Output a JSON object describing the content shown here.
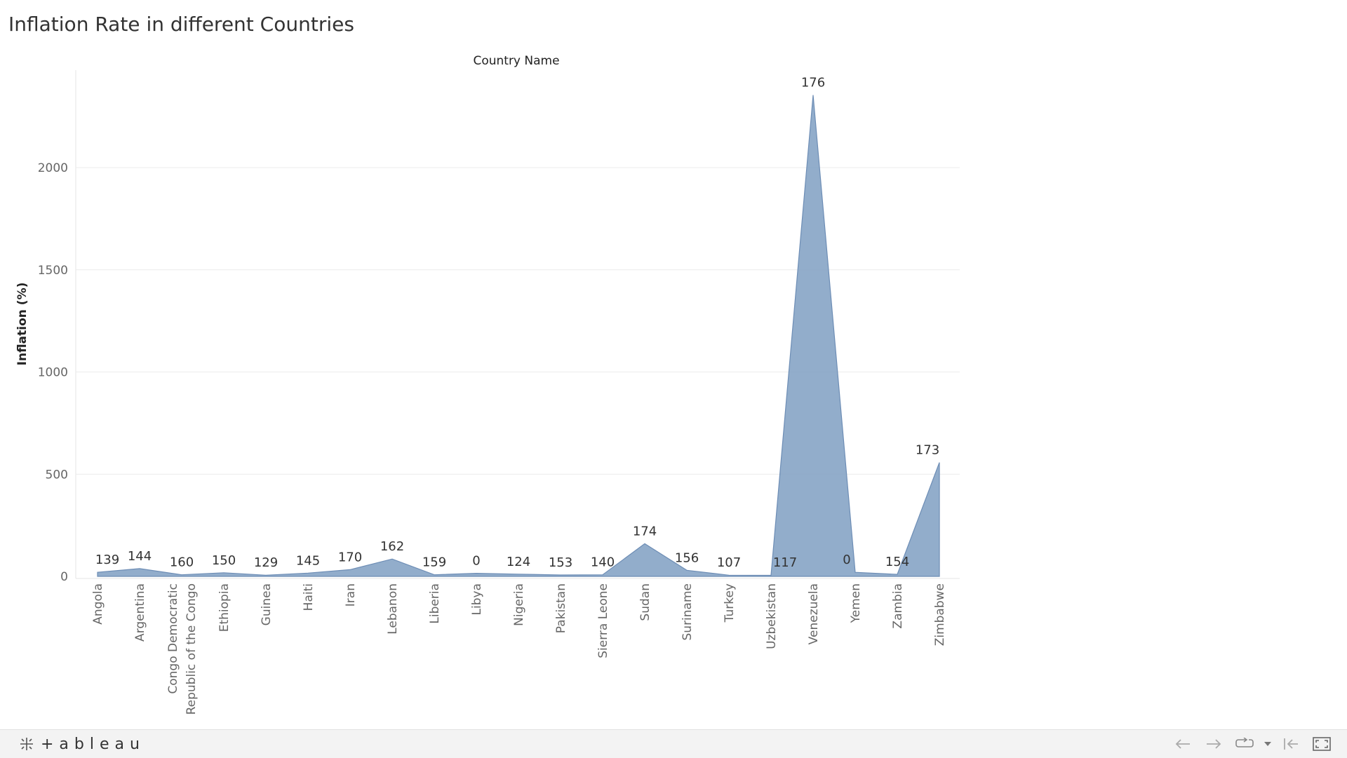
{
  "title": "Inflation Rate in different Countries",
  "footer": {
    "brand": "+ableau",
    "controls": [
      "undo-icon",
      "redo-icon",
      "revert-icon",
      "dropdown-icon",
      "reset-icon",
      "fullscreen-icon"
    ]
  },
  "chart_data": {
    "type": "area",
    "header": "Country Name",
    "ylabel": "Inflation (%)",
    "ylim": [
      0,
      2360
    ],
    "yticks": [
      "0",
      "500",
      "1000",
      "1500",
      "2000"
    ],
    "grid": true,
    "color": "#7f9fc2",
    "categories": [
      [
        "Angola"
      ],
      [
        "Argentina"
      ],
      [
        "Congo Democratic",
        "Republic of the Congo"
      ],
      [
        "Ethiopia"
      ],
      [
        "Guinea"
      ],
      [
        "Haiti"
      ],
      [
        "Iran"
      ],
      [
        "Lebanon"
      ],
      [
        "Liberia"
      ],
      [
        "Libya"
      ],
      [
        "Nigeria"
      ],
      [
        "Pakistan"
      ],
      [
        "Sierra Leone"
      ],
      [
        "Sudan"
      ],
      [
        "Suriname"
      ],
      [
        "Turkey"
      ],
      [
        "Uzbekistan"
      ],
      [
        "Venezuela"
      ],
      [
        "Yemen"
      ],
      [
        "Zambia"
      ],
      [
        "Zimbabwe"
      ]
    ],
    "values": [
      20,
      38,
      8,
      18,
      6,
      16,
      33,
      85,
      8,
      15,
      11,
      7,
      8,
      160,
      30,
      6,
      5,
      2355,
      20,
      10,
      557
    ],
    "data_labels": [
      "139",
      "144",
      "160",
      "150",
      "129",
      "145",
      "170",
      "162",
      "159",
      "0",
      "124",
      "153",
      "140",
      "174",
      "156",
      "107",
      "117",
      "176",
      "0",
      "154",
      "173"
    ]
  }
}
